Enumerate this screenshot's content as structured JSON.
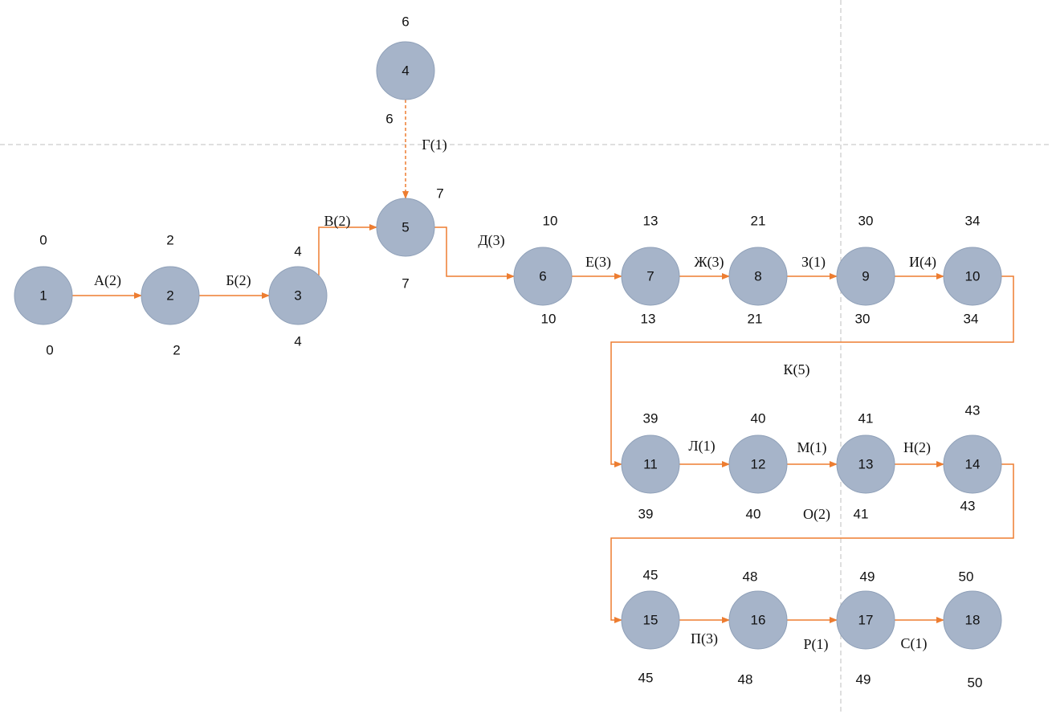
{
  "nodes": [
    {
      "id": "1",
      "early": "0",
      "late": "0"
    },
    {
      "id": "2",
      "early": "2",
      "late": "2"
    },
    {
      "id": "3",
      "early": "4",
      "late": "4"
    },
    {
      "id": "4",
      "early": "6",
      "late": "6"
    },
    {
      "id": "5",
      "early": "7",
      "late": "7"
    },
    {
      "id": "6",
      "early": "10",
      "late": "10"
    },
    {
      "id": "7",
      "early": "13",
      "late": "13"
    },
    {
      "id": "8",
      "early": "21",
      "late": "21"
    },
    {
      "id": "9",
      "early": "30",
      "late": "30"
    },
    {
      "id": "10",
      "early": "34",
      "late": "34"
    },
    {
      "id": "11",
      "early": "39",
      "late": "39"
    },
    {
      "id": "12",
      "early": "40",
      "late": "40"
    },
    {
      "id": "13",
      "early": "41",
      "late": "41"
    },
    {
      "id": "14",
      "early": "43",
      "late": "43"
    },
    {
      "id": "15",
      "early": "45",
      "late": "45"
    },
    {
      "id": "16",
      "early": "48",
      "late": "48"
    },
    {
      "id": "17",
      "early": "49",
      "late": "49"
    },
    {
      "id": "18",
      "early": "50",
      "late": "50"
    }
  ],
  "activities": [
    {
      "label": "А(2)",
      "from": "1",
      "to": "2"
    },
    {
      "label": "Б(2)",
      "from": "2",
      "to": "3"
    },
    {
      "label": "В(2)",
      "from": "3",
      "to": "5"
    },
    {
      "label": "Г(1)",
      "from": "4",
      "to": "5",
      "dashed": true
    },
    {
      "label": "Д(3)",
      "from": "5",
      "to": "6"
    },
    {
      "label": "Е(3)",
      "from": "6",
      "to": "7"
    },
    {
      "label": "Ж(3)",
      "from": "7",
      "to": "8"
    },
    {
      "label": "З(1)",
      "from": "8",
      "to": "9"
    },
    {
      "label": "И(4)",
      "from": "9",
      "to": "10"
    },
    {
      "label": "К(5)",
      "from": "10",
      "to": "11"
    },
    {
      "label": "Л(1)",
      "from": "11",
      "to": "12"
    },
    {
      "label": "М(1)",
      "from": "12",
      "to": "13"
    },
    {
      "label": "Н(2)",
      "from": "13",
      "to": "14"
    },
    {
      "label": "О(2)",
      "from": "14",
      "to": "15"
    },
    {
      "label": "П(3)",
      "from": "15",
      "to": "16"
    },
    {
      "label": "Р(1)",
      "from": "16",
      "to": "17"
    },
    {
      "label": "С(1)",
      "from": "17",
      "to": "18"
    }
  ],
  "colors": {
    "node_fill": "#a6b4c9",
    "edge": "#ed7d31",
    "guide": "#bfbfbf"
  }
}
